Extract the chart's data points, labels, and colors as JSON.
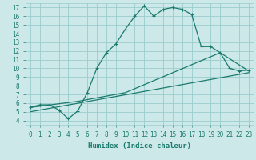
{
  "xlabel": "Humidex (Indice chaleur)",
  "bg_color": "#cce8e8",
  "grid_color": "#99cccc",
  "line_color": "#1a7a6e",
  "xlim": [
    -0.5,
    23.5
  ],
  "ylim": [
    3.5,
    17.5
  ],
  "xticks": [
    0,
    1,
    2,
    3,
    4,
    5,
    6,
    7,
    8,
    9,
    10,
    11,
    12,
    13,
    14,
    15,
    16,
    17,
    18,
    19,
    20,
    21,
    22,
    23
  ],
  "yticks": [
    4,
    5,
    6,
    7,
    8,
    9,
    10,
    11,
    12,
    13,
    14,
    15,
    16,
    17
  ],
  "line1_x": [
    0,
    1,
    2,
    3,
    4,
    5,
    6,
    7,
    8,
    9,
    10,
    11,
    12,
    13,
    14,
    15,
    16,
    17,
    18,
    19,
    20,
    21,
    22,
    23
  ],
  "line1_y": [
    5.5,
    5.8,
    5.8,
    5.2,
    4.2,
    5.1,
    7.2,
    10.0,
    11.8,
    12.8,
    14.5,
    16.0,
    17.2,
    16.0,
    16.8,
    17.0,
    16.8,
    16.2,
    12.5,
    12.5,
    11.8,
    10.0,
    9.7,
    9.8
  ],
  "line2_x": [
    0,
    5,
    10,
    20,
    23
  ],
  "line2_y": [
    5.5,
    6.2,
    7.2,
    11.8,
    9.7
  ],
  "line3_x": [
    0,
    23
  ],
  "line3_y": [
    5.0,
    9.5
  ]
}
